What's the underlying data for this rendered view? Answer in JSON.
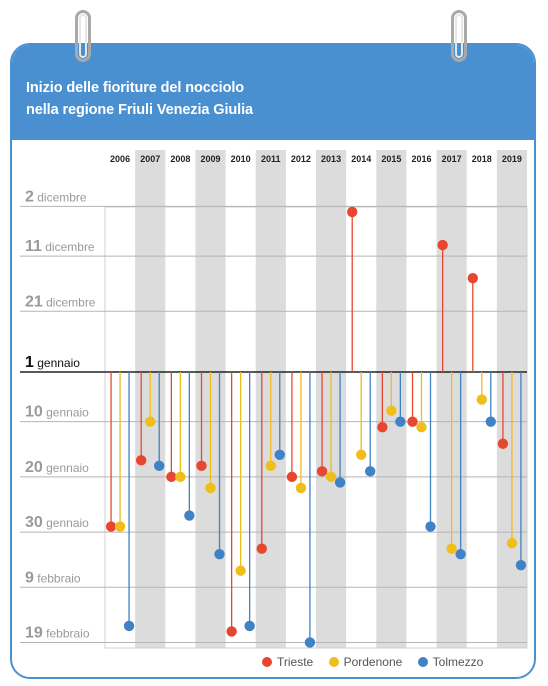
{
  "header": {
    "title_line1": "Inizio delle fioriture del nocciolo",
    "title_line2": "nella regione Friuli Venezia Giulia"
  },
  "colors": {
    "header_bg": "#4a90d0",
    "stripe": "#dcdcdc",
    "trieste": "#e8472f",
    "pordenone": "#f0be1a",
    "tolmezzo": "#3f82c6"
  },
  "chart_data": {
    "type": "scatter",
    "title": "Inizio delle fioriture del nocciolo nella regione Friuli Venezia Giulia",
    "x_label": "",
    "y_label": "",
    "categories": [
      "2006",
      "2007",
      "2008",
      "2009",
      "2010",
      "2011",
      "2012",
      "2013",
      "2014",
      "2015",
      "2016",
      "2017",
      "2018",
      "2019"
    ],
    "baseline": "1 gennaio",
    "y_axis": {
      "unit": "days relative to 1 gennaio",
      "range": [
        -30,
        50
      ],
      "reversed": true,
      "ticks": [
        {
          "value": -30,
          "number": "2",
          "month": "dicembre"
        },
        {
          "value": -21,
          "number": "11",
          "month": "dicembre"
        },
        {
          "value": -11,
          "number": "21",
          "month": "dicembre"
        },
        {
          "value": 0,
          "number": "1",
          "month": "gennaio"
        },
        {
          "value": 9,
          "number": "10",
          "month": "gennaio"
        },
        {
          "value": 19,
          "number": "20",
          "month": "gennaio"
        },
        {
          "value": 29,
          "number": "30",
          "month": "gennaio"
        },
        {
          "value": 39,
          "number": "9",
          "month": "febbraio"
        },
        {
          "value": 49,
          "number": "19",
          "month": "febbraio"
        }
      ]
    },
    "grid": true,
    "legend_position": "bottom-right",
    "series": [
      {
        "name": "Trieste",
        "color": "#e8472f",
        "values": [
          28,
          16,
          19,
          17,
          47,
          32,
          19,
          18,
          -29,
          10,
          9,
          -23,
          -17,
          13
        ]
      },
      {
        "name": "Pordenone",
        "color": "#f0be1a",
        "values": [
          28,
          9,
          19,
          21,
          36,
          17,
          21,
          19,
          15,
          7,
          10,
          32,
          5,
          31
        ]
      },
      {
        "name": "Tolmezzo",
        "color": "#3f82c6",
        "values": [
          46,
          17,
          26,
          33,
          46,
          15,
          49,
          20,
          18,
          9,
          28,
          33,
          9,
          35
        ]
      }
    ]
  }
}
